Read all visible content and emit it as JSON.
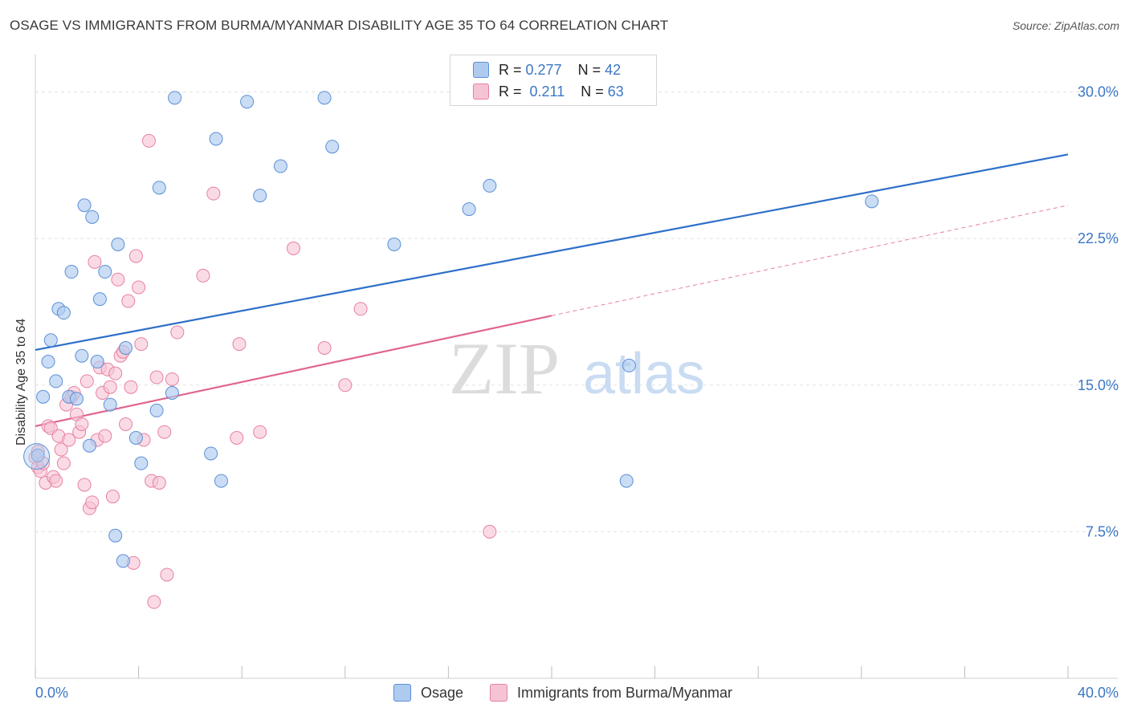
{
  "title": "OSAGE VS IMMIGRANTS FROM BURMA/MYANMAR DISABILITY AGE 35 TO 64 CORRELATION CHART",
  "source": "Source: ZipAtlas.com",
  "watermark": {
    "zip": "ZIP",
    "atlas": "atlas"
  },
  "legend_top": [
    {
      "r_label": "R =",
      "r_value": "0.277",
      "n_label": "N =",
      "n_value": "42"
    },
    {
      "r_label": "R =",
      "r_value": "0.211",
      "n_label": "N =",
      "n_value": "63"
    }
  ],
  "colors": {
    "osage_fill": "#aecbef",
    "osage_stroke": "#5b8fd6",
    "osage_line": "#2e6fc9",
    "burma_fill": "#f6c3d4",
    "burma_stroke": "#e7819f",
    "burma_line": "#e0668f",
    "grid": "#e3e3e3",
    "tick_label": "#3b78c4"
  },
  "chart_data": {
    "type": "scatter",
    "title": "OSAGE VS IMMIGRANTS FROM BURMA/MYANMAR DISABILITY AGE 35 TO 64 CORRELATION CHART",
    "xlabel": "",
    "ylabel": "Disability Age 35 to 64",
    "xlim": [
      0,
      40
    ],
    "ylim": [
      0,
      31.5
    ],
    "x_tick_labels": [
      "0.0%",
      "40.0%"
    ],
    "y_ticks": [
      7.5,
      15.0,
      22.5,
      30.0
    ],
    "y_tick_labels": [
      "7.5%",
      "15.0%",
      "22.5%",
      "30.0%"
    ],
    "grid": true,
    "legend_position": "bottom",
    "series": [
      {
        "name": "Osage",
        "R": 0.277,
        "N": 42,
        "trend": {
          "x": [
            0,
            40
          ],
          "y": [
            16.8,
            26.8
          ],
          "dashed_after": null
        },
        "points": [
          [
            0.1,
            11.4
          ],
          [
            0.3,
            14.4
          ],
          [
            0.5,
            16.2
          ],
          [
            0.6,
            17.3
          ],
          [
            0.8,
            15.2
          ],
          [
            0.9,
            18.9
          ],
          [
            1.1,
            18.7
          ],
          [
            1.3,
            14.4
          ],
          [
            1.4,
            20.8
          ],
          [
            1.6,
            14.3
          ],
          [
            1.8,
            16.5
          ],
          [
            1.9,
            24.2
          ],
          [
            2.1,
            11.9
          ],
          [
            2.2,
            23.6
          ],
          [
            2.4,
            16.2
          ],
          [
            2.5,
            19.4
          ],
          [
            2.7,
            20.8
          ],
          [
            2.9,
            14.0
          ],
          [
            3.1,
            7.3
          ],
          [
            3.2,
            22.2
          ],
          [
            3.4,
            6.0
          ],
          [
            3.5,
            16.9
          ],
          [
            3.9,
            12.3
          ],
          [
            4.1,
            11.0
          ],
          [
            4.7,
            13.7
          ],
          [
            4.8,
            25.1
          ],
          [
            5.3,
            14.6
          ],
          [
            5.4,
            29.7
          ],
          [
            6.8,
            11.5
          ],
          [
            7.0,
            27.6
          ],
          [
            7.2,
            10.1
          ],
          [
            8.2,
            29.5
          ],
          [
            8.7,
            24.7
          ],
          [
            9.5,
            26.2
          ],
          [
            11.2,
            29.7
          ],
          [
            11.5,
            27.2
          ],
          [
            13.9,
            22.2
          ],
          [
            16.8,
            24.0
          ],
          [
            17.6,
            25.2
          ],
          [
            23.0,
            16.0
          ],
          [
            22.9,
            10.1
          ],
          [
            32.4,
            24.4
          ]
        ]
      },
      {
        "name": "Immigrants from Burma/Myanmar",
        "R": 0.211,
        "N": 63,
        "trend": {
          "x": [
            0,
            40
          ],
          "y": [
            12.9,
            24.2
          ],
          "dashed_after": 20
        },
        "points": [
          [
            0.0,
            11.3
          ],
          [
            0.1,
            10.8
          ],
          [
            0.2,
            10.6
          ],
          [
            0.3,
            11.0
          ],
          [
            0.4,
            10.0
          ],
          [
            0.5,
            12.9
          ],
          [
            0.6,
            12.8
          ],
          [
            0.7,
            10.3
          ],
          [
            0.8,
            10.1
          ],
          [
            0.9,
            12.4
          ],
          [
            1.0,
            11.7
          ],
          [
            1.1,
            11.0
          ],
          [
            1.2,
            14.0
          ],
          [
            1.3,
            12.2
          ],
          [
            1.4,
            14.4
          ],
          [
            1.5,
            14.6
          ],
          [
            1.6,
            13.5
          ],
          [
            1.7,
            12.6
          ],
          [
            1.8,
            13.0
          ],
          [
            1.9,
            9.9
          ],
          [
            2.0,
            15.2
          ],
          [
            2.1,
            8.7
          ],
          [
            2.2,
            9.0
          ],
          [
            2.3,
            21.3
          ],
          [
            2.4,
            12.2
          ],
          [
            2.5,
            15.9
          ],
          [
            2.6,
            14.6
          ],
          [
            2.7,
            12.4
          ],
          [
            2.8,
            15.8
          ],
          [
            2.9,
            14.9
          ],
          [
            3.0,
            9.3
          ],
          [
            3.1,
            15.6
          ],
          [
            3.2,
            20.4
          ],
          [
            3.3,
            16.5
          ],
          [
            3.4,
            16.7
          ],
          [
            3.5,
            13.0
          ],
          [
            3.6,
            19.3
          ],
          [
            3.7,
            14.9
          ],
          [
            3.8,
            5.9
          ],
          [
            3.9,
            21.6
          ],
          [
            4.0,
            20.0
          ],
          [
            4.1,
            17.1
          ],
          [
            4.2,
            12.2
          ],
          [
            4.4,
            27.5
          ],
          [
            4.5,
            10.1
          ],
          [
            4.6,
            3.9
          ],
          [
            4.7,
            15.4
          ],
          [
            4.8,
            10.0
          ],
          [
            5.0,
            12.6
          ],
          [
            5.1,
            5.3
          ],
          [
            5.3,
            15.3
          ],
          [
            5.5,
            17.7
          ],
          [
            6.5,
            20.6
          ],
          [
            6.9,
            24.8
          ],
          [
            7.8,
            12.3
          ],
          [
            7.9,
            17.1
          ],
          [
            8.7,
            12.6
          ],
          [
            10.0,
            22.0
          ],
          [
            11.2,
            16.9
          ],
          [
            12.0,
            15.0
          ],
          [
            12.6,
            18.9
          ],
          [
            17.6,
            7.5
          ],
          [
            0.1,
            11.6
          ]
        ]
      }
    ]
  }
}
